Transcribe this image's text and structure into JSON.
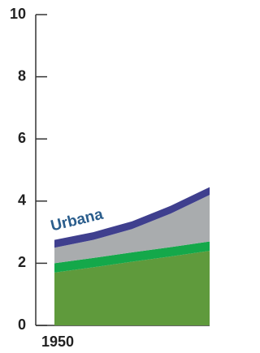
{
  "chart_data": {
    "type": "stacked-area",
    "categories": [
      "1950",
      null,
      null,
      null,
      null
    ],
    "series": [
      {
        "color": "#5f9a3c",
        "values": [
          1.7,
          1.87,
          2.05,
          2.22,
          2.4
        ]
      },
      {
        "color": "#14a84a",
        "values": [
          0.3,
          0.3,
          0.3,
          0.3,
          0.3
        ]
      },
      {
        "color": "#a9acae",
        "values": [
          0.5,
          0.58,
          0.75,
          1.08,
          1.5
        ]
      },
      {
        "name": "Urbana",
        "color": "#3f3f8e",
        "values": [
          0.25,
          0.25,
          0.25,
          0.25,
          0.25
        ]
      }
    ],
    "ylim": [
      0,
      10
    ],
    "yticks": [
      0,
      2,
      4,
      6,
      8,
      10
    ]
  }
}
